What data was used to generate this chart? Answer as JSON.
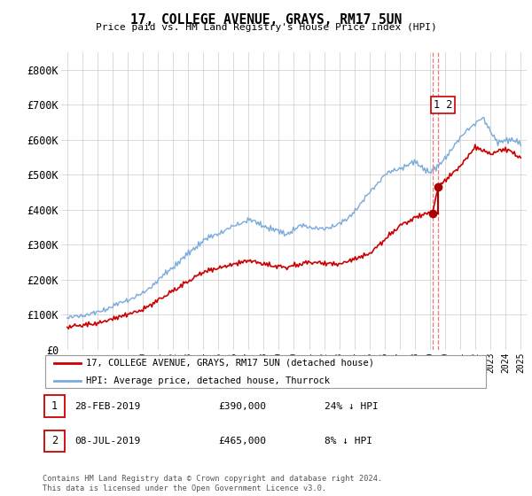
{
  "title": "17, COLLEGE AVENUE, GRAYS, RM17 5UN",
  "subtitle": "Price paid vs. HM Land Registry's House Price Index (HPI)",
  "ylim": [
    0,
    850000
  ],
  "yticks": [
    0,
    100000,
    200000,
    300000,
    400000,
    500000,
    600000,
    700000,
    800000
  ],
  "ytick_labels": [
    "£0",
    "£100K",
    "£200K",
    "£300K",
    "£400K",
    "£500K",
    "£600K",
    "£700K",
    "£800K"
  ],
  "hpi_color": "#7aabdb",
  "price_color": "#cc0000",
  "marker_color": "#aa0000",
  "dashed_line_color": "#ee6666",
  "annotation_box_color": "#cc0000",
  "legend_label_price": "17, COLLEGE AVENUE, GRAYS, RM17 5UN (detached house)",
  "legend_label_hpi": "HPI: Average price, detached house, Thurrock",
  "transaction1_label": "1",
  "transaction1_date": "28-FEB-2019",
  "transaction1_price": "£390,000",
  "transaction1_pct": "24% ↓ HPI",
  "transaction2_label": "2",
  "transaction2_date": "08-JUL-2019",
  "transaction2_price": "£465,000",
  "transaction2_pct": "8% ↓ HPI",
  "footer": "Contains HM Land Registry data © Crown copyright and database right 2024.\nThis data is licensed under the Open Government Licence v3.0.",
  "transaction1_x": 2019.17,
  "transaction1_y": 390000,
  "transaction2_x": 2019.53,
  "transaction2_y": 465000,
  "xlim_left": 1994.6,
  "xlim_right": 2025.4
}
